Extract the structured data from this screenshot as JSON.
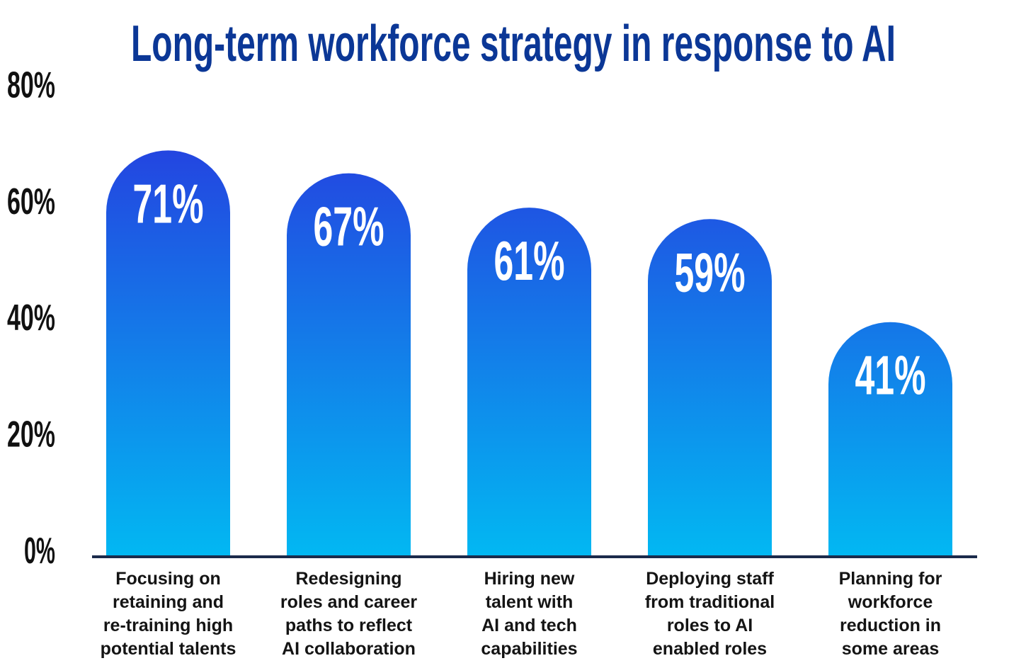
{
  "chart_data": {
    "type": "bar",
    "title": "Long-term workforce strategy in response to AI",
    "xlabel": "",
    "ylabel": "",
    "ylim": [
      0,
      80
    ],
    "yticks": [
      "0%",
      "20%",
      "40%",
      "60%",
      "80%"
    ],
    "ytick_values": [
      0,
      20,
      40,
      60,
      80
    ],
    "grid": false,
    "categories": [
      [
        "Focusing on",
        "retaining and",
        "re-training high",
        "potential talents"
      ],
      [
        "Redesigning",
        "roles and career",
        "paths to reflect",
        "AI collaboration"
      ],
      [
        "Hiring new",
        "talent with",
        "AI and tech",
        "capabilities"
      ],
      [
        "Deploying staff",
        "from traditional",
        "roles to AI",
        "enabled roles"
      ],
      [
        "Planning for",
        "workforce",
        "reduction in",
        "some areas"
      ]
    ],
    "values": [
      71,
      67,
      61,
      59,
      41
    ],
    "data_labels": [
      "71%",
      "67%",
      "61%",
      "59%",
      "41%"
    ],
    "colors": {
      "bar_top": "#2443e0",
      "bar_bottom": "#02b8f2",
      "title": "#0b3796",
      "axis": "#1b2b4b"
    }
  }
}
